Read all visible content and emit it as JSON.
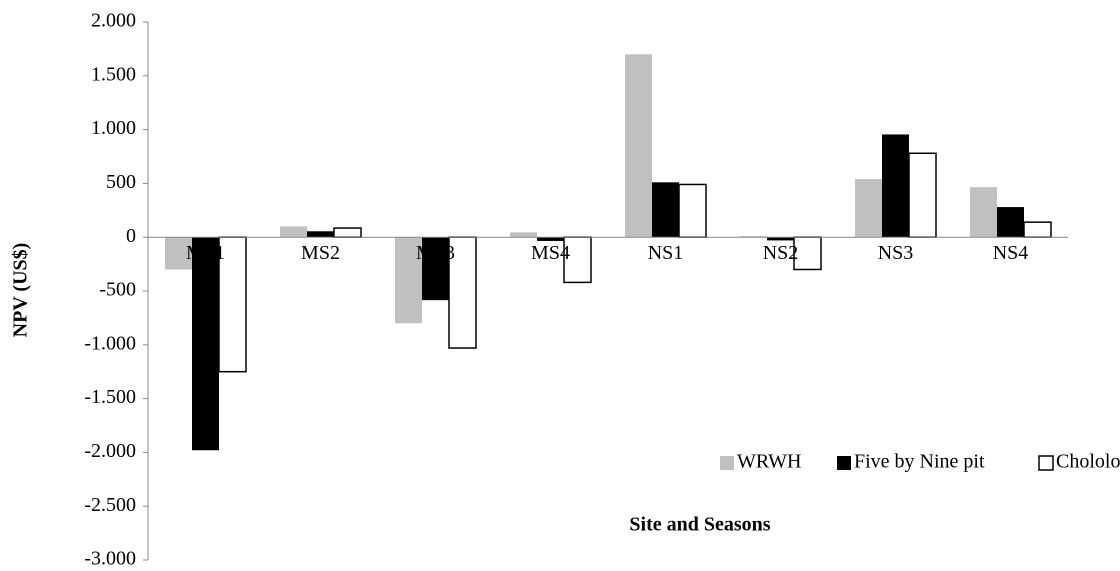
{
  "chart_data": {
    "type": "bar",
    "y_label": "NPV (US$)",
    "x_label": "Site and Seasons",
    "categories": [
      "MS1",
      "MS2",
      "MS3",
      "MS4",
      "NS1",
      "NS2",
      "NS3",
      "NS4"
    ],
    "series": [
      {
        "name": "WRWH",
        "color": "#c0c0c0",
        "values": [
          -300,
          100,
          -800,
          45,
          1700,
          10,
          540,
          465
        ]
      },
      {
        "name": "Five by Nine pit",
        "color": "#000000",
        "values": [
          -1980,
          55,
          -585,
          -35,
          510,
          -30,
          955,
          280
        ]
      },
      {
        "name": "Chololo pit",
        "color": "#ffffff",
        "values": [
          -1250,
          85,
          -1030,
          -420,
          490,
          -300,
          780,
          140
        ]
      }
    ],
    "ylim": [
      -3000,
      2000
    ],
    "yticks": [
      {
        "value": 2000,
        "label": "2.000"
      },
      {
        "value": 1500,
        "label": "1.500"
      },
      {
        "value": 1000,
        "label": "1.000"
      },
      500,
      0,
      -500,
      {
        "value": -1000,
        "label": "-1.000"
      },
      {
        "value": -1500,
        "label": "-1.500"
      },
      {
        "value": -2000,
        "label": "-2.000"
      },
      {
        "value": -2500,
        "label": "-2.500"
      },
      {
        "value": -3000,
        "label": "-3.000"
      }
    ],
    "grid": false,
    "legend": "lower right"
  }
}
